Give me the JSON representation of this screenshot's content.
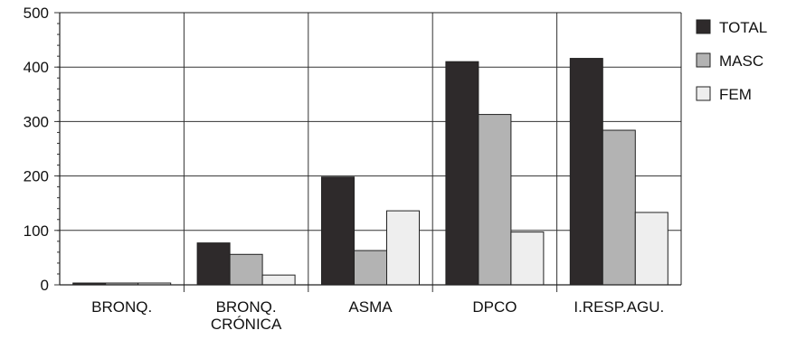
{
  "chart_data": {
    "type": "bar",
    "categories": [
      [
        "BRONQ."
      ],
      [
        "BRONQ.",
        "CRÓNICA"
      ],
      [
        "ASMA"
      ],
      [
        "DPCO"
      ],
      [
        "I.RESP.AGU."
      ]
    ],
    "series": [
      {
        "name": "TOTAL",
        "color": "#2e2a2b",
        "values": [
          3,
          77,
          198,
          410,
          416
        ]
      },
      {
        "name": "MASC",
        "color": "#b3b3b3",
        "values": [
          0,
          56,
          63,
          313,
          284
        ]
      },
      {
        "name": "FEM",
        "color": "#eeeeee",
        "values": [
          3,
          18,
          136,
          97,
          133
        ]
      }
    ],
    "ylim": [
      0,
      500
    ],
    "yticks": [
      0,
      100,
      200,
      300,
      400,
      500
    ],
    "grid": true,
    "legend_position": "right"
  }
}
